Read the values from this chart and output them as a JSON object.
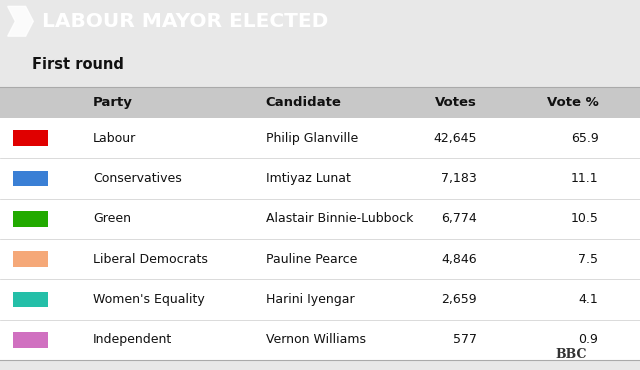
{
  "title": "LABOUR MAYOR ELECTED",
  "title_bg": "#e01010",
  "title_text_color": "#ffffff",
  "subtitle": "First round",
  "col_headers": [
    "Party",
    "Candidate",
    "Votes",
    "Vote %"
  ],
  "rows": [
    {
      "party": "Labour",
      "color": "#e00000",
      "candidate": "Philip Glanville",
      "votes": "42,645",
      "vote_pct": "65.9"
    },
    {
      "party": "Conservatives",
      "color": "#3a7fd5",
      "candidate": "Imtiyaz Lunat",
      "votes": "7,183",
      "vote_pct": "11.1"
    },
    {
      "party": "Green",
      "color": "#22aa00",
      "candidate": "Alastair Binnie-Lubbock",
      "votes": "6,774",
      "vote_pct": "10.5"
    },
    {
      "party": "Liberal Democrats",
      "color": "#f5a878",
      "candidate": "Pauline Pearce",
      "votes": "4,846",
      "vote_pct": "7.5"
    },
    {
      "party": "Women's Equality",
      "color": "#24bfa8",
      "candidate": "Harini Iyengar",
      "votes": "2,659",
      "vote_pct": "4.1"
    },
    {
      "party": "Independent",
      "color": "#d070c0",
      "candidate": "Vernon Williams",
      "votes": "577",
      "vote_pct": "0.9"
    }
  ],
  "table_bg": "#e8e8e8",
  "fig_bg": "#e8e8e8"
}
